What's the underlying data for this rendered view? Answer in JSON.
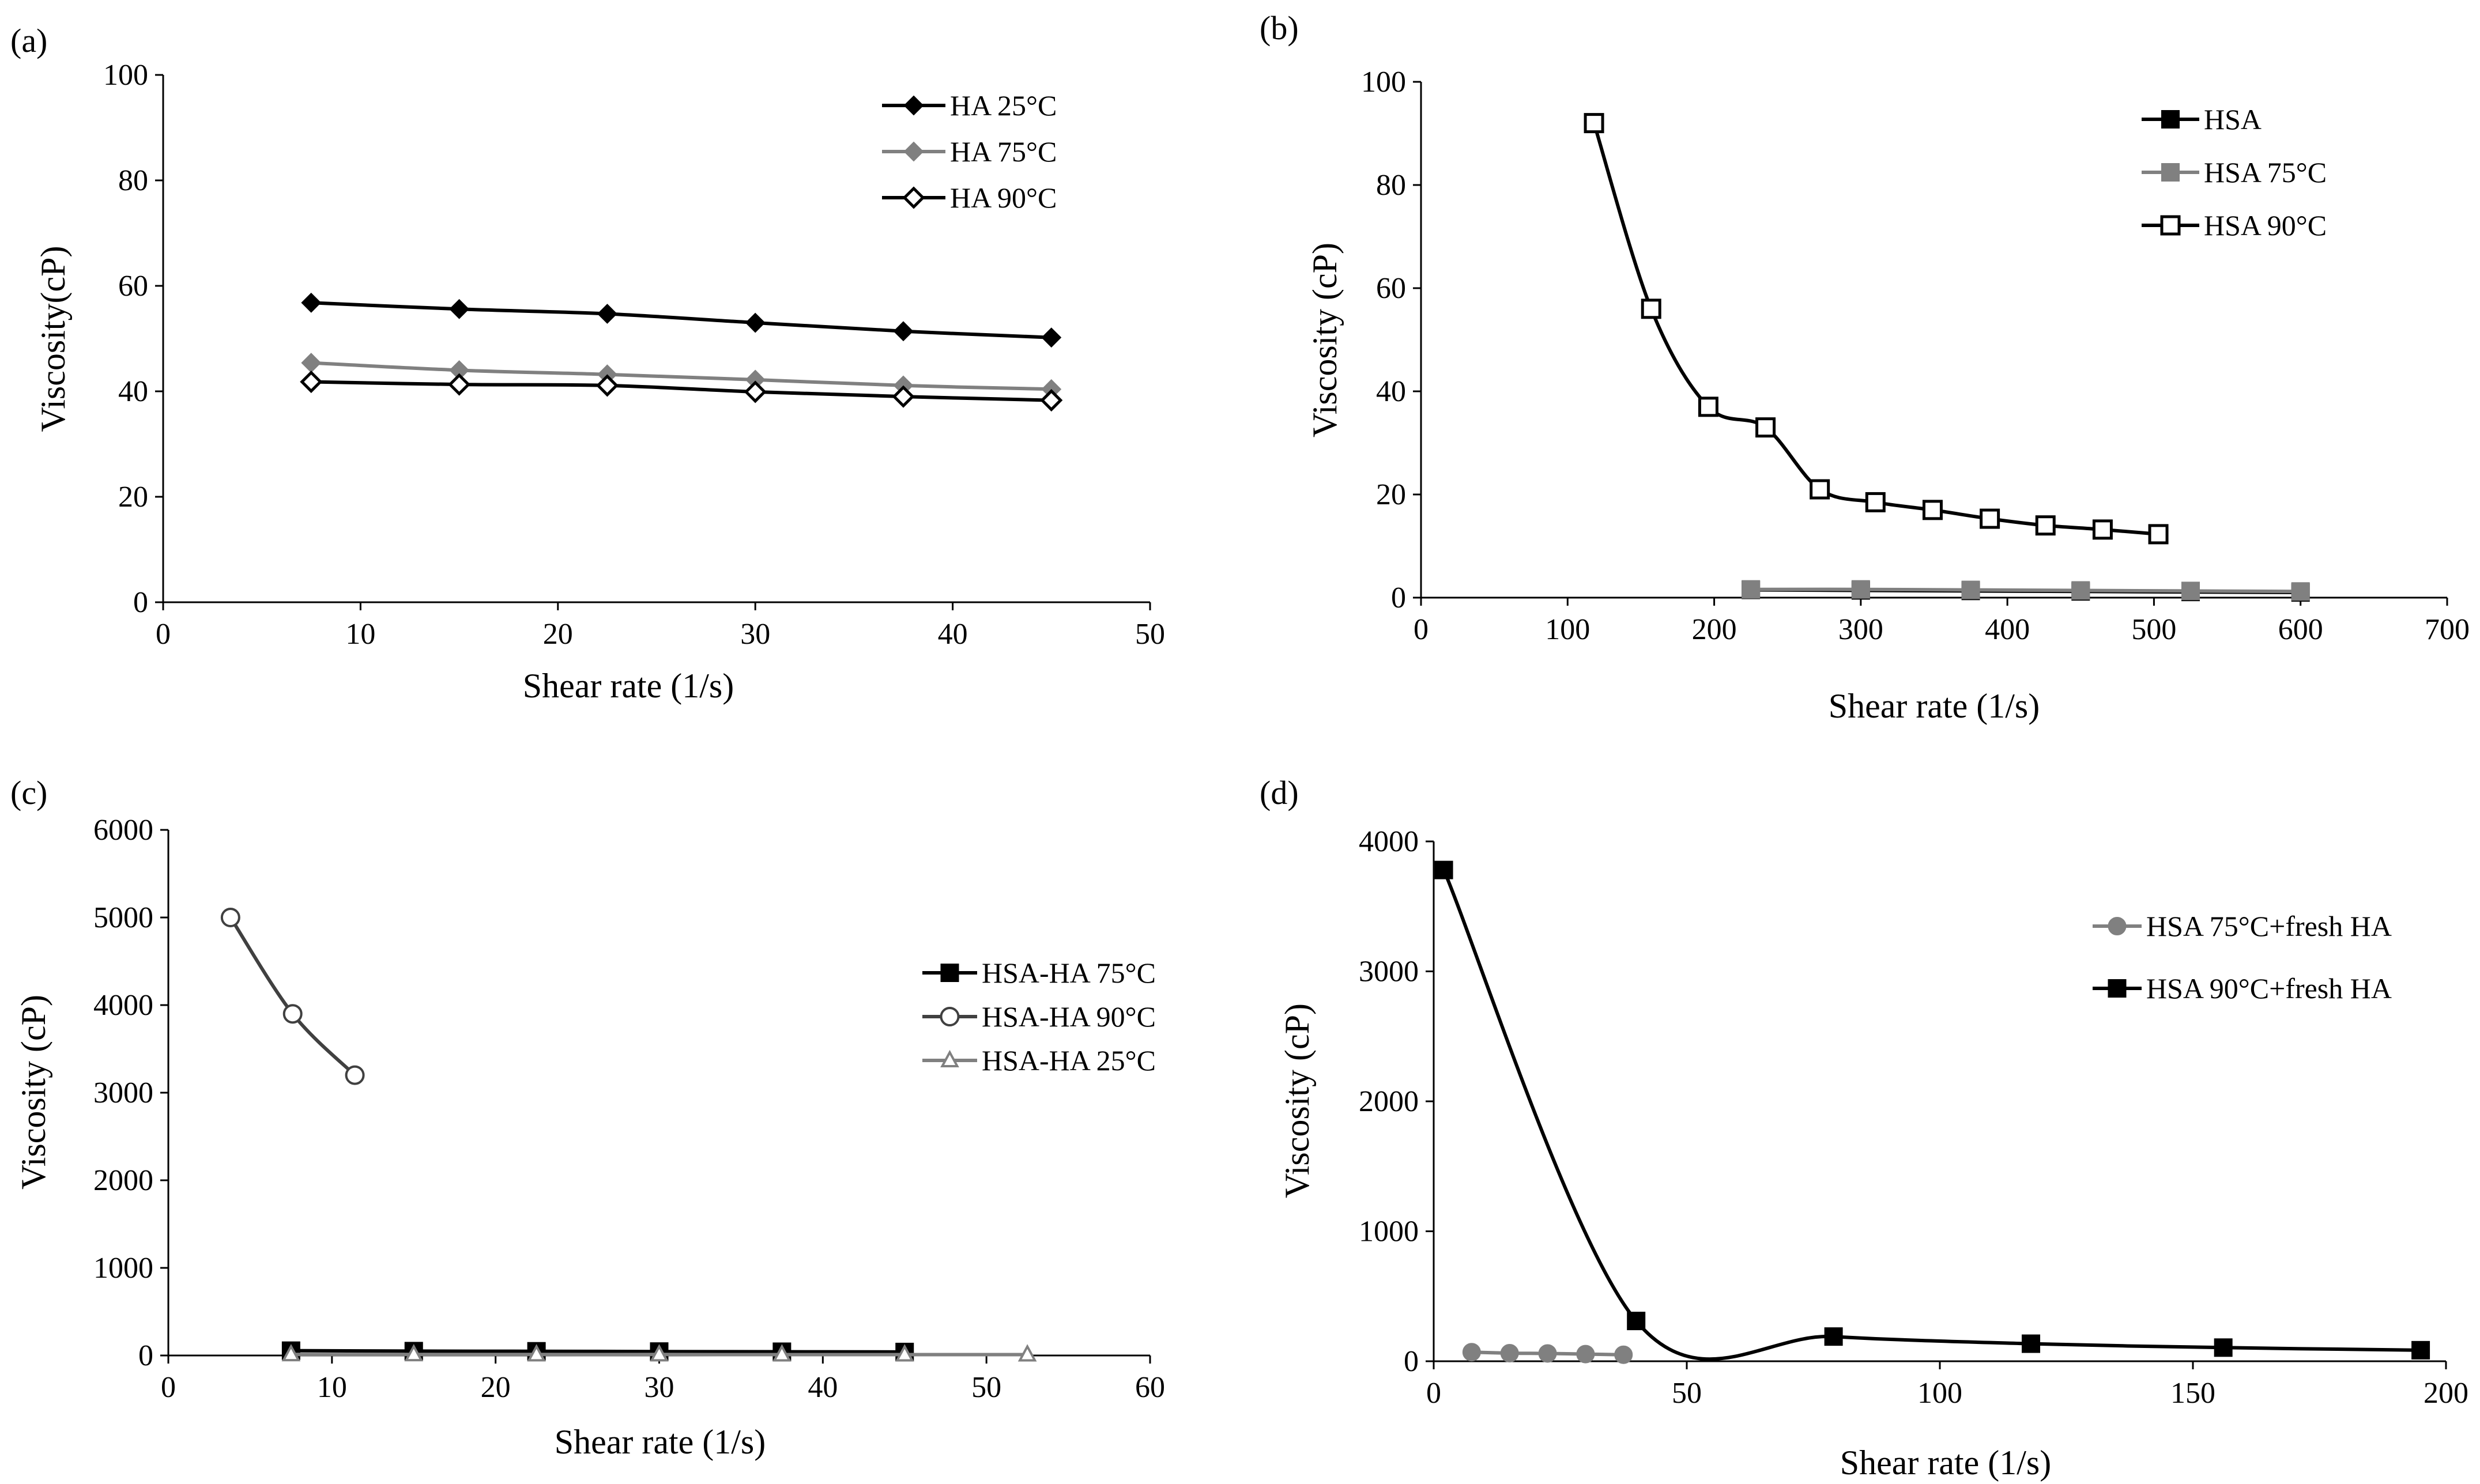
{
  "chart_data": [
    {
      "panel_label": "(a)",
      "type": "line",
      "xlabel": "Shear rate (1/s)",
      "ylabel": "Viscosity(cP)",
      "xlim": [
        0,
        50
      ],
      "ylim": [
        0,
        100
      ],
      "xticks": [
        0,
        10,
        20,
        30,
        40,
        50
      ],
      "yticks": [
        0,
        20,
        40,
        60,
        80,
        100
      ],
      "legend_position": "top-right",
      "series": [
        {
          "name": "HA 25°C",
          "color": "#000000",
          "marker": "diamond-filled",
          "x": [
            7.5,
            15,
            22.5,
            30,
            37.5,
            45
          ],
          "y": [
            56.8,
            55.6,
            54.7,
            53.0,
            51.4,
            50.2
          ]
        },
        {
          "name": "HA 75°C",
          "color": "#808080",
          "marker": "diamond-filled",
          "x": [
            7.5,
            15,
            22.5,
            30,
            37.5,
            45
          ],
          "y": [
            45.4,
            44.0,
            43.2,
            42.2,
            41.1,
            40.4
          ]
        },
        {
          "name": "HA 90°C",
          "color": "#000000",
          "marker": "diamond-open",
          "x": [
            7.5,
            15,
            22.5,
            30,
            37.5,
            45
          ],
          "y": [
            41.8,
            41.3,
            41.1,
            39.9,
            39.0,
            38.3
          ]
        }
      ]
    },
    {
      "panel_label": "(b)",
      "type": "line",
      "xlabel": "Shear rate (1/s)",
      "ylabel": "Viscosity (cP)",
      "xlim": [
        0,
        700
      ],
      "ylim": [
        0,
        100
      ],
      "xticks": [
        0,
        100,
        200,
        300,
        400,
        500,
        600,
        700
      ],
      "yticks": [
        0,
        20,
        40,
        60,
        80,
        100
      ],
      "legend_position": "top-right",
      "series": [
        {
          "name": "HSA",
          "color": "#000000",
          "marker": "square-filled",
          "x": [
            225,
            300,
            375,
            450,
            525,
            600
          ],
          "y": [
            1.5,
            1.4,
            1.3,
            1.2,
            1.1,
            1.0
          ]
        },
        {
          "name": "HSA 75°C",
          "color": "#808080",
          "marker": "square-filled",
          "x": [
            225,
            300,
            375,
            450,
            525,
            600
          ],
          "y": [
            1.6,
            1.6,
            1.5,
            1.4,
            1.3,
            1.2
          ]
        },
        {
          "name": "HSA 90°C",
          "color": "#000000",
          "marker": "square-open",
          "x": [
            118,
            157,
            196,
            235,
            272,
            310,
            349,
            388,
            426,
            465,
            503
          ],
          "y": [
            92,
            56,
            37,
            33,
            21,
            18.5,
            17,
            15.3,
            14,
            13.2,
            12.3
          ]
        }
      ]
    },
    {
      "panel_label": "(c)",
      "type": "line",
      "xlabel": "Shear rate (1/s)",
      "ylabel": "Viscosity (cP)",
      "xlim": [
        0,
        60
      ],
      "ylim": [
        0,
        6000
      ],
      "xticks": [
        0,
        10,
        20,
        30,
        40,
        50,
        60
      ],
      "yticks": [
        0,
        1000,
        2000,
        3000,
        4000,
        5000,
        6000
      ],
      "legend_position": "right",
      "series": [
        {
          "name": "HSA-HA 75°C",
          "color": "#000000",
          "marker": "square-filled",
          "x": [
            7.5,
            15,
            22.5,
            30,
            37.5,
            45
          ],
          "y": [
            55,
            50,
            48,
            45,
            43,
            40
          ]
        },
        {
          "name": "HSA-HA 90°C",
          "color": "#404040",
          "marker": "circle-open",
          "x": [
            3.8,
            7.6,
            11.4
          ],
          "y": [
            5000,
            3900,
            3200
          ]
        },
        {
          "name": "HSA-HA 25°C",
          "color": "#808080",
          "marker": "triangle-open",
          "x": [
            7.5,
            15,
            22.5,
            30,
            37.5,
            45,
            52.5
          ],
          "y": [
            12,
            12,
            11,
            11,
            10,
            10,
            10
          ]
        }
      ]
    },
    {
      "panel_label": "(d)",
      "type": "line",
      "xlabel": "Shear rate (1/s)",
      "ylabel": "Viscosity (cP)",
      "xlim": [
        0,
        200
      ],
      "ylim": [
        0,
        4000
      ],
      "xticks": [
        0,
        50,
        100,
        150,
        200
      ],
      "yticks": [
        0,
        1000,
        2000,
        3000,
        4000
      ],
      "legend_position": "right",
      "series": [
        {
          "name": "HSA 75°C+fresh HA",
          "color": "#808080",
          "marker": "circle-filled",
          "x": [
            7.5,
            15,
            22.5,
            30,
            37.5
          ],
          "y": [
            70,
            62,
            60,
            55,
            50
          ]
        },
        {
          "name": "HSA 90°C+fresh HA",
          "color": "#000000",
          "marker": "square-filled",
          "x": [
            2,
            40,
            79,
            118,
            156,
            195
          ],
          "y": [
            3780,
            310,
            190,
            135,
            105,
            85
          ]
        }
      ]
    }
  ]
}
